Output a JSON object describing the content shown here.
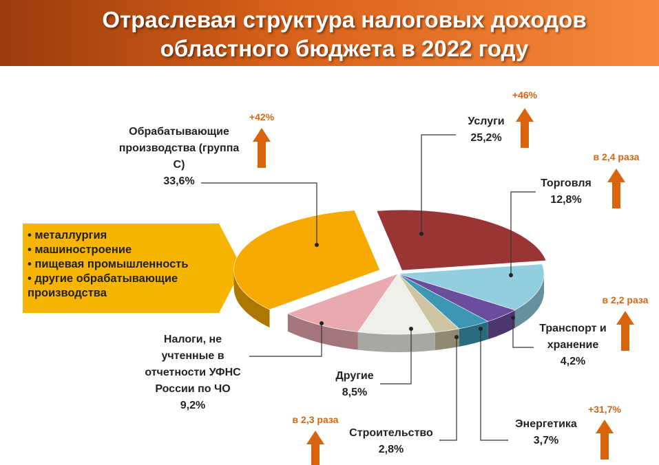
{
  "chart_data": {
    "type": "pie",
    "title": "Отраслевая структура налоговых доходов областного бюджета в 2022 году",
    "categories": [
      "Услуги",
      "Торговля",
      "Транспорт и хранение",
      "Энергетика",
      "Строительство",
      "Другие",
      "Налоги, не учтенные в отчетности УФНС России по ЧО",
      "Обрабатывающие производства (группа С)"
    ],
    "values": [
      25.2,
      12.8,
      4.2,
      3.7,
      2.8,
      8.5,
      9.2,
      33.6
    ],
    "value_labels": [
      "25,2%",
      "12,8%",
      "4,2%",
      "3,7%",
      "2,8%",
      "8,5%",
      "9,2%",
      "33,6%"
    ],
    "colors": [
      "#9a3535",
      "#92cde0",
      "#6b4d9e",
      "#3b97b3",
      "#cdc5a2",
      "#efefea",
      "#e9a9b0",
      "#f6a900"
    ],
    "growth_labels": [
      "+46%",
      "в 2,4 раза",
      "в 2,2 раза",
      "+31,7%",
      "в 2,3 раза",
      null,
      null,
      "+42%"
    ],
    "callout": [
      "металлургия",
      "машиностроение",
      "пищевая промышленность",
      "другие обрабатывающие производства"
    ]
  }
}
